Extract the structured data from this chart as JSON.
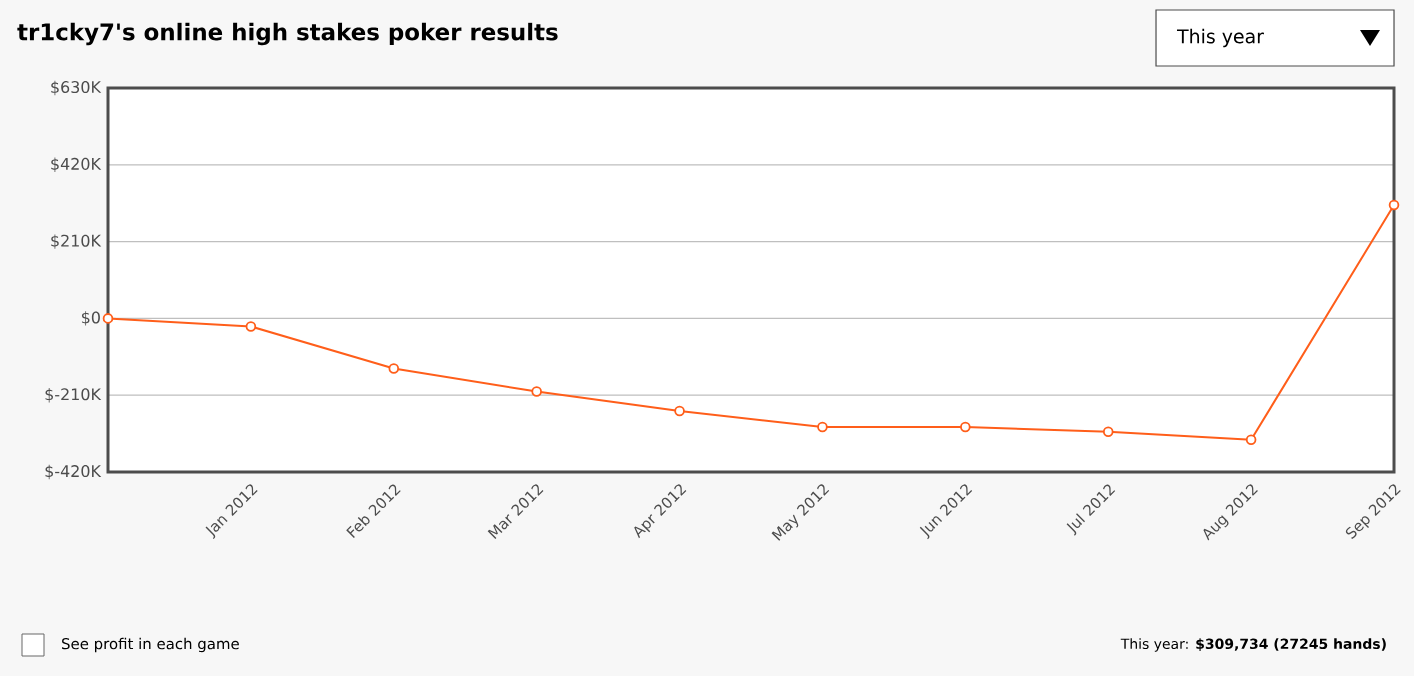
{
  "chart_data": {
    "type": "line",
    "title": "tr1cky7's online high stakes poker results",
    "categories": [
      null,
      "Jan 2012",
      "Feb 2012",
      "Mar 2012",
      "Apr 2012",
      "May 2012",
      "Jun 2012",
      "Jul 2012",
      "Aug 2012",
      "Sep 2012"
    ],
    "series": [
      {
        "color": "#ff5e1a",
        "values": [
          0,
          -22000,
          -137000,
          -200000,
          -253000,
          -297000,
          -297000,
          -310000,
          -332000,
          310000
        ]
      }
    ],
    "ylim": [
      -420000,
      630000
    ],
    "yticks": [
      {
        "value": -420000,
        "label": "$-420K"
      },
      {
        "value": -210000,
        "label": "$-210K"
      },
      {
        "value": 0,
        "label": "$0"
      },
      {
        "value": 210000,
        "label": "$210K"
      },
      {
        "value": 420000,
        "label": "$420K"
      },
      {
        "value": 630000,
        "label": "$630K"
      }
    ],
    "grid": "y",
    "marker": "circle",
    "line_style": "solid",
    "annotations": [
      "This year",
      "See profit in each game",
      "This year: **$309,734 (27245 hands)**"
    ]
  }
}
